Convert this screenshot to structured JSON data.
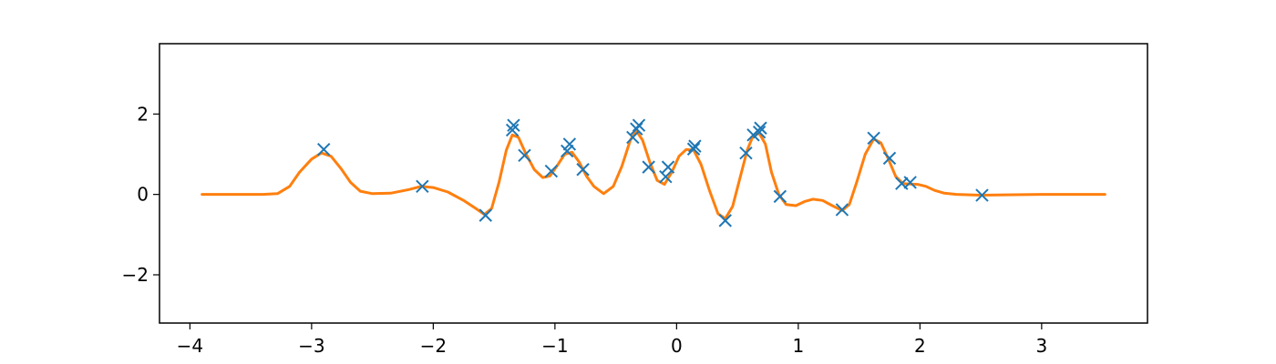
{
  "chart_data": {
    "type": "line",
    "title": "",
    "xlabel": "",
    "ylabel": "",
    "xlim": [
      -4.25,
      3.87
    ],
    "ylim": [
      -3.2,
      3.75
    ],
    "x_ticks": [
      -4,
      -3,
      -2,
      -1,
      0,
      1,
      2,
      3
    ],
    "y_ticks": [
      -2,
      0,
      2
    ],
    "grid": false,
    "legend": "none",
    "colors": {
      "samples": "#1f77b4",
      "fit": "#ff7f0e"
    },
    "series": [
      {
        "kind": "markers",
        "marker": "x",
        "points": [
          [
            -2.9,
            1.12
          ],
          [
            -2.09,
            0.2
          ],
          [
            -1.57,
            -0.52
          ],
          [
            -1.35,
            1.6
          ],
          [
            -1.34,
            1.72
          ],
          [
            -1.25,
            0.97
          ],
          [
            -1.03,
            0.58
          ],
          [
            -0.9,
            1.08
          ],
          [
            -0.88,
            1.25
          ],
          [
            -0.77,
            0.62
          ],
          [
            -0.36,
            1.42
          ],
          [
            -0.33,
            1.63
          ],
          [
            -0.31,
            1.72
          ],
          [
            -0.23,
            0.68
          ],
          [
            -0.09,
            0.44
          ],
          [
            -0.07,
            0.68
          ],
          [
            0.14,
            1.13
          ],
          [
            0.15,
            1.2
          ],
          [
            0.4,
            -0.65
          ],
          [
            0.57,
            1.03
          ],
          [
            0.63,
            1.48
          ],
          [
            0.68,
            1.55
          ],
          [
            0.69,
            1.65
          ],
          [
            0.85,
            -0.05
          ],
          [
            1.36,
            -0.38
          ],
          [
            1.62,
            1.4
          ],
          [
            1.75,
            0.9
          ],
          [
            1.85,
            0.27
          ],
          [
            1.92,
            0.3
          ],
          [
            2.51,
            -0.02
          ]
        ]
      },
      {
        "kind": "line",
        "points": [
          [
            -3.9,
            0.0
          ],
          [
            -3.4,
            0.0
          ],
          [
            -3.28,
            0.02
          ],
          [
            -3.18,
            0.2
          ],
          [
            -3.1,
            0.55
          ],
          [
            -3.0,
            0.88
          ],
          [
            -2.92,
            1.03
          ],
          [
            -2.84,
            0.95
          ],
          [
            -2.76,
            0.65
          ],
          [
            -2.68,
            0.3
          ],
          [
            -2.6,
            0.08
          ],
          [
            -2.5,
            0.02
          ],
          [
            -2.35,
            0.03
          ],
          [
            -2.2,
            0.12
          ],
          [
            -2.1,
            0.2
          ],
          [
            -2.0,
            0.17
          ],
          [
            -1.88,
            0.06
          ],
          [
            -1.75,
            -0.15
          ],
          [
            -1.65,
            -0.35
          ],
          [
            -1.58,
            -0.5
          ],
          [
            -1.52,
            -0.35
          ],
          [
            -1.46,
            0.3
          ],
          [
            -1.4,
            1.1
          ],
          [
            -1.35,
            1.48
          ],
          [
            -1.3,
            1.42
          ],
          [
            -1.24,
            1.02
          ],
          [
            -1.17,
            0.62
          ],
          [
            -1.1,
            0.42
          ],
          [
            -1.04,
            0.46
          ],
          [
            -0.98,
            0.72
          ],
          [
            -0.92,
            1.0
          ],
          [
            -0.86,
            1.05
          ],
          [
            -0.8,
            0.8
          ],
          [
            -0.74,
            0.45
          ],
          [
            -0.68,
            0.2
          ],
          [
            -0.6,
            0.02
          ],
          [
            -0.52,
            0.2
          ],
          [
            -0.45,
            0.7
          ],
          [
            -0.38,
            1.35
          ],
          [
            -0.33,
            1.58
          ],
          [
            -0.28,
            1.35
          ],
          [
            -0.22,
            0.8
          ],
          [
            -0.16,
            0.35
          ],
          [
            -0.1,
            0.25
          ],
          [
            -0.04,
            0.55
          ],
          [
            0.02,
            0.95
          ],
          [
            0.08,
            1.12
          ],
          [
            0.14,
            1.1
          ],
          [
            0.2,
            0.75
          ],
          [
            0.27,
            0.1
          ],
          [
            0.34,
            -0.48
          ],
          [
            0.4,
            -0.6
          ],
          [
            0.46,
            -0.3
          ],
          [
            0.52,
            0.4
          ],
          [
            0.58,
            1.1
          ],
          [
            0.63,
            1.47
          ],
          [
            0.68,
            1.52
          ],
          [
            0.73,
            1.25
          ],
          [
            0.78,
            0.55
          ],
          [
            0.84,
            0.0
          ],
          [
            0.9,
            -0.25
          ],
          [
            0.98,
            -0.28
          ],
          [
            1.05,
            -0.18
          ],
          [
            1.12,
            -0.12
          ],
          [
            1.2,
            -0.15
          ],
          [
            1.28,
            -0.28
          ],
          [
            1.36,
            -0.4
          ],
          [
            1.42,
            -0.25
          ],
          [
            1.48,
            0.3
          ],
          [
            1.55,
            1.0
          ],
          [
            1.62,
            1.38
          ],
          [
            1.68,
            1.28
          ],
          [
            1.74,
            0.88
          ],
          [
            1.8,
            0.45
          ],
          [
            1.86,
            0.27
          ],
          [
            1.92,
            0.26
          ],
          [
            1.98,
            0.25
          ],
          [
            2.05,
            0.2
          ],
          [
            2.12,
            0.1
          ],
          [
            2.2,
            0.03
          ],
          [
            2.3,
            0.0
          ],
          [
            2.5,
            -0.02
          ],
          [
            2.7,
            -0.01
          ],
          [
            3.0,
            0.0
          ],
          [
            3.52,
            0.0
          ]
        ]
      }
    ]
  }
}
